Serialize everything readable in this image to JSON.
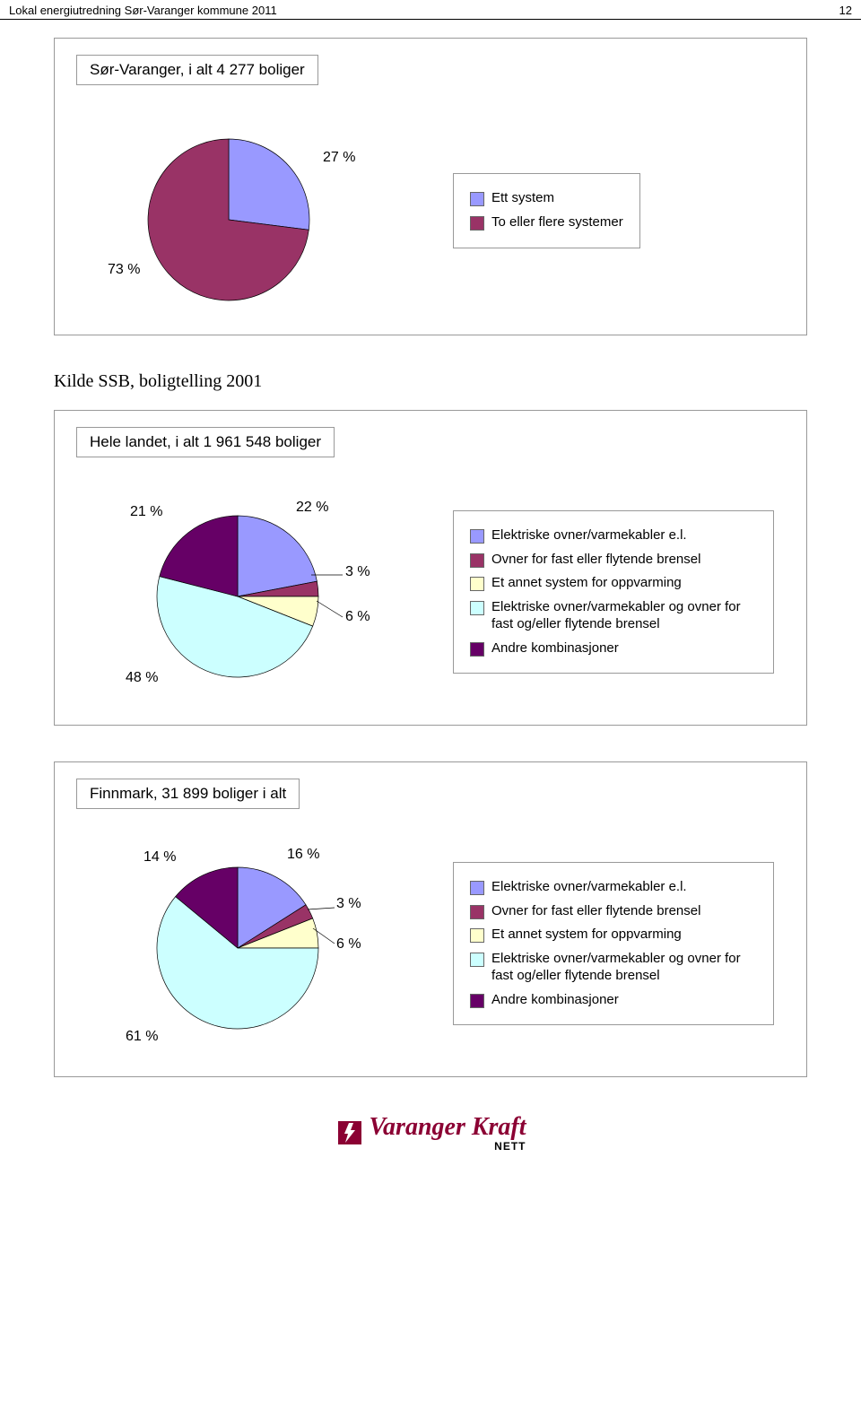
{
  "header": {
    "title": "Lokal energiutredning Sør-Varanger kommune 2011",
    "page_number": "12"
  },
  "chart1": {
    "type": "pie",
    "title": "Sør-Varanger, i alt 4 277 boliger",
    "slices": [
      {
        "label": "Ett system",
        "pct": 27,
        "color": "#9999ff",
        "value_text": "27 %"
      },
      {
        "label": "To eller flere systemer",
        "pct": 73,
        "color": "#993366",
        "value_text": "73 %"
      }
    ],
    "background": "#ffffff",
    "border": "#999999"
  },
  "source_line": "Kilde SSB, boligtelling 2001",
  "chart2": {
    "type": "pie",
    "title": "Hele landet, i alt 1 961 548 boliger",
    "slices": [
      {
        "key": "el",
        "label": "Elektriske ovner/varmekabler e.l.",
        "pct": 22,
        "color": "#9999ff",
        "value_text": "22 %"
      },
      {
        "key": "fast",
        "label": "Ovner for fast eller flytende brensel",
        "pct": 3,
        "color": "#993366",
        "value_text": "3 %"
      },
      {
        "key": "annet",
        "label": "Et annet system for oppvarming",
        "pct": 6,
        "color": "#ffffcc",
        "value_text": "6 %"
      },
      {
        "key": "elkomb",
        "label": "Elektriske ovner/varmekabler og ovner for fast og/eller flytende brensel",
        "pct": 48,
        "color": "#ccffff",
        "value_text": "48 %"
      },
      {
        "key": "andre",
        "label": "Andre kombinasjoner",
        "pct": 21,
        "color": "#660066",
        "value_text": "21 %"
      }
    ],
    "background": "#ffffff",
    "border": "#999999"
  },
  "chart3": {
    "type": "pie",
    "title": "Finnmark, 31 899 boliger i alt",
    "slices": [
      {
        "key": "el",
        "label": "Elektriske ovner/varmekabler e.l.",
        "pct": 16,
        "color": "#9999ff",
        "value_text": "16 %"
      },
      {
        "key": "fast",
        "label": "Ovner for fast eller flytende brensel",
        "pct": 3,
        "color": "#993366",
        "value_text": "3 %"
      },
      {
        "key": "annet",
        "label": "Et annet system for oppvarming",
        "pct": 6,
        "color": "#ffffcc",
        "value_text": "6 %"
      },
      {
        "key": "elkomb",
        "label": "Elektriske ovner/varmekabler og ovner for fast og/eller flytende brensel",
        "pct": 61,
        "color": "#ccffff",
        "value_text": "61 %"
      },
      {
        "key": "andre",
        "label": "Andre kombinasjoner",
        "pct": 14,
        "color": "#660066",
        "value_text": "14 %"
      }
    ],
    "background": "#ffffff",
    "border": "#999999"
  },
  "footer": {
    "brand": "Varanger Kraft",
    "sub": "NETT",
    "brand_color": "#8b0033"
  }
}
